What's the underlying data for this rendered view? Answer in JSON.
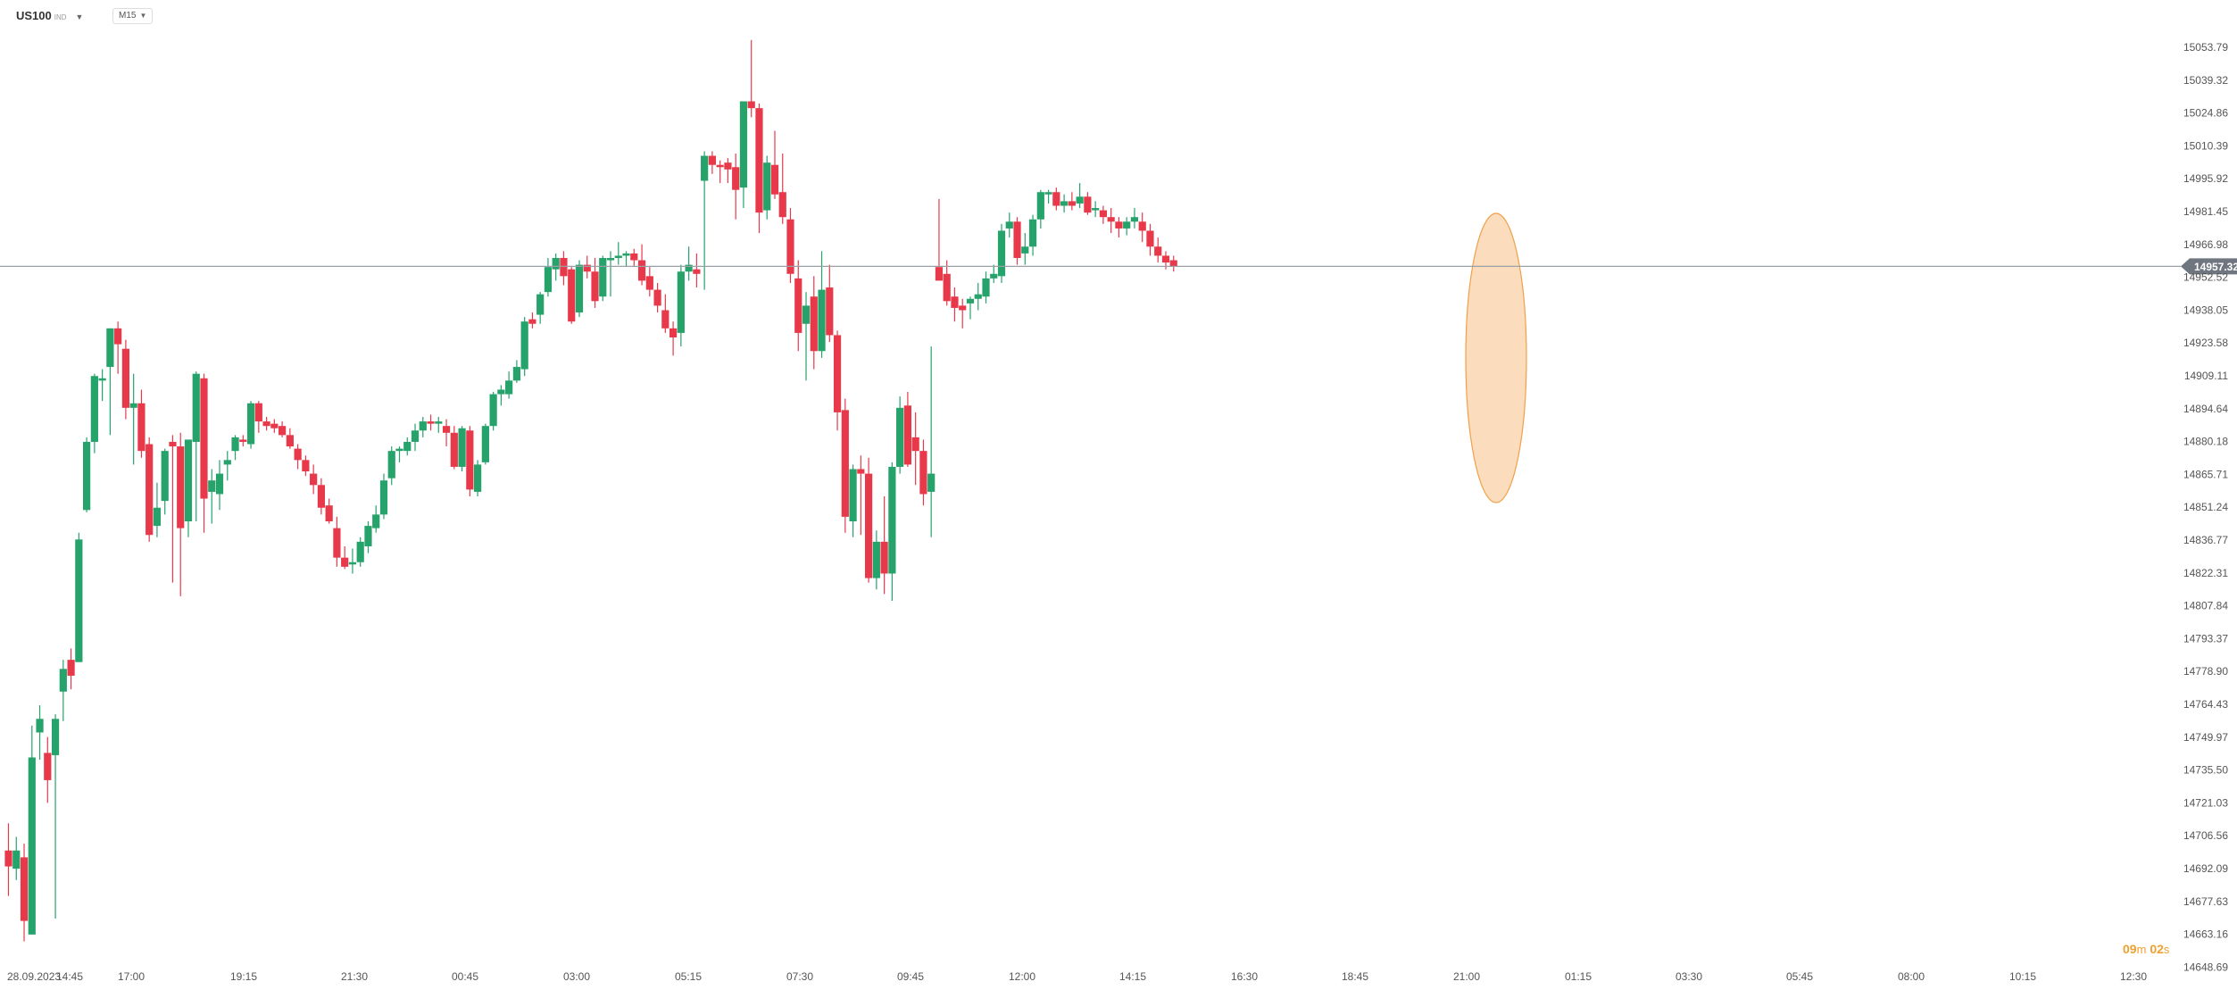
{
  "header": {
    "symbol": "US100",
    "symbol_tag": "IND",
    "timeframe": "M15"
  },
  "countdown": {
    "minutes": "09",
    "min_unit": "m",
    "seconds": "02",
    "sec_unit": "s"
  },
  "colors": {
    "bull": "#26a26b",
    "bear": "#e8394b",
    "current_line": "#9aa0a6",
    "current_label_bg": "#6f7680",
    "highlight": "#f6b26b"
  },
  "chart_data": {
    "type": "candlestick",
    "instrument": "US100",
    "interval": "M15",
    "y_ticks": [
      "15053.79",
      "15039.32",
      "15024.86",
      "15010.39",
      "14995.92",
      "14981.45",
      "14966.98",
      "14952.52",
      "14938.05",
      "14923.58",
      "14909.11",
      "14894.64",
      "14880.18",
      "14865.71",
      "14851.24",
      "14836.77",
      "14822.31",
      "14807.84",
      "14793.37",
      "14778.90",
      "14764.43",
      "14749.97",
      "14735.50",
      "14721.03",
      "14706.56",
      "14692.09",
      "14677.63",
      "14663.16",
      "14648.69"
    ],
    "x_ticks": [
      "28.09.2023",
      "14:45",
      "17:00",
      "19:15",
      "21:30",
      "00:45",
      "03:00",
      "05:15",
      "07:30",
      "09:45",
      "12:00",
      "14:15",
      "16:30",
      "18:45",
      "21:00",
      "01:15",
      "03:30",
      "05:45",
      "08:00",
      "10:15",
      "12:30"
    ],
    "ylim": [
      14648.69,
      15063
    ],
    "current_price": "14957.32",
    "annotations": [
      "ellipse highlighting the candles between 21:00 and 21:30"
    ],
    "candles": [
      {
        "o": 14700,
        "h": 14712,
        "l": 14680,
        "c": 14693
      },
      {
        "o": 14692,
        "h": 14706,
        "l": 14687,
        "c": 14700
      },
      {
        "o": 14697,
        "h": 14703,
        "l": 14660,
        "c": 14669
      },
      {
        "o": 14663,
        "h": 14755,
        "l": 14663,
        "c": 14741
      },
      {
        "o": 14752,
        "h": 14764,
        "l": 14740,
        "c": 14758
      },
      {
        "o": 14743,
        "h": 14750,
        "l": 14721,
        "c": 14731
      },
      {
        "o": 14742,
        "h": 14760,
        "l": 14670,
        "c": 14758
      },
      {
        "o": 14770,
        "h": 14784,
        "l": 14757,
        "c": 14780
      },
      {
        "o": 14784,
        "h": 14789,
        "l": 14771,
        "c": 14777
      },
      {
        "o": 14783,
        "h": 14840,
        "l": 14783,
        "c": 14837
      },
      {
        "o": 14850,
        "h": 14882,
        "l": 14849,
        "c": 14880
      },
      {
        "o": 14880,
        "h": 14910,
        "l": 14875,
        "c": 14909
      },
      {
        "o": 14907,
        "h": 14912,
        "l": 14898,
        "c": 14908
      },
      {
        "o": 14913,
        "h": 14930,
        "l": 14883,
        "c": 14930
      },
      {
        "o": 14930,
        "h": 14933,
        "l": 14910,
        "c": 14923
      },
      {
        "o": 14921,
        "h": 14925,
        "l": 14890,
        "c": 14895
      },
      {
        "o": 14895,
        "h": 14910,
        "l": 14870,
        "c": 14897
      },
      {
        "o": 14897,
        "h": 14903,
        "l": 14873,
        "c": 14876
      },
      {
        "o": 14879,
        "h": 14882,
        "l": 14836,
        "c": 14839
      },
      {
        "o": 14843,
        "h": 14862,
        "l": 14838,
        "c": 14851
      },
      {
        "o": 14854,
        "h": 14877,
        "l": 14848,
        "c": 14876
      },
      {
        "o": 14880,
        "h": 14883,
        "l": 14818,
        "c": 14878
      },
      {
        "o": 14878,
        "h": 14884,
        "l": 14812,
        "c": 14842
      },
      {
        "o": 14845,
        "h": 14880,
        "l": 14838,
        "c": 14881
      },
      {
        "o": 14880,
        "h": 14911,
        "l": 14845,
        "c": 14910
      },
      {
        "o": 14908,
        "h": 14910,
        "l": 14840,
        "c": 14855
      },
      {
        "o": 14858,
        "h": 14868,
        "l": 14844,
        "c": 14863
      },
      {
        "o": 14857,
        "h": 14872,
        "l": 14850,
        "c": 14866
      },
      {
        "o": 14870,
        "h": 14876,
        "l": 14863,
        "c": 14872
      },
      {
        "o": 14876,
        "h": 14883,
        "l": 14872,
        "c": 14882
      },
      {
        "o": 14881,
        "h": 14883,
        "l": 14878,
        "c": 14880
      },
      {
        "o": 14879,
        "h": 14898,
        "l": 14877,
        "c": 14897
      },
      {
        "o": 14897,
        "h": 14898,
        "l": 14884,
        "c": 14889
      },
      {
        "o": 14889,
        "h": 14891,
        "l": 14885,
        "c": 14887
      },
      {
        "o": 14888,
        "h": 14890,
        "l": 14884,
        "c": 14886
      },
      {
        "o": 14887,
        "h": 14889,
        "l": 14882,
        "c": 14883
      },
      {
        "o": 14883,
        "h": 14886,
        "l": 14877,
        "c": 14878
      },
      {
        "o": 14877,
        "h": 14879,
        "l": 14868,
        "c": 14872
      },
      {
        "o": 14872,
        "h": 14874,
        "l": 14865,
        "c": 14867
      },
      {
        "o": 14866,
        "h": 14870,
        "l": 14857,
        "c": 14861
      },
      {
        "o": 14861,
        "h": 14864,
        "l": 14848,
        "c": 14851
      },
      {
        "o": 14852,
        "h": 14855,
        "l": 14844,
        "c": 14845
      },
      {
        "o": 14842,
        "h": 14847,
        "l": 14825,
        "c": 14829
      },
      {
        "o": 14829,
        "h": 14834,
        "l": 14824,
        "c": 14825
      },
      {
        "o": 14826,
        "h": 14833,
        "l": 14822,
        "c": 14827
      },
      {
        "o": 14827,
        "h": 14838,
        "l": 14825,
        "c": 14836
      },
      {
        "o": 14834,
        "h": 14845,
        "l": 14831,
        "c": 14843
      },
      {
        "o": 14842,
        "h": 14852,
        "l": 14840,
        "c": 14848
      },
      {
        "o": 14848,
        "h": 14866,
        "l": 14846,
        "c": 14863
      },
      {
        "o": 14864,
        "h": 14878,
        "l": 14861,
        "c": 14876
      },
      {
        "o": 14876,
        "h": 14878,
        "l": 14871,
        "c": 14877
      },
      {
        "o": 14876,
        "h": 14882,
        "l": 14874,
        "c": 14880
      },
      {
        "o": 14880,
        "h": 14888,
        "l": 14876,
        "c": 14885
      },
      {
        "o": 14885,
        "h": 14891,
        "l": 14882,
        "c": 14889
      },
      {
        "o": 14889,
        "h": 14892,
        "l": 14885,
        "c": 14888
      },
      {
        "o": 14888,
        "h": 14891,
        "l": 14884,
        "c": 14889
      },
      {
        "o": 14887,
        "h": 14890,
        "l": 14878,
        "c": 14884
      },
      {
        "o": 14884,
        "h": 14887,
        "l": 14868,
        "c": 14869
      },
      {
        "o": 14869,
        "h": 14887,
        "l": 14867,
        "c": 14886
      },
      {
        "o": 14885,
        "h": 14887,
        "l": 14856,
        "c": 14859
      },
      {
        "o": 14858,
        "h": 14872,
        "l": 14856,
        "c": 14870
      },
      {
        "o": 14871,
        "h": 14888,
        "l": 14870,
        "c": 14887
      },
      {
        "o": 14887,
        "h": 14902,
        "l": 14885,
        "c": 14901
      },
      {
        "o": 14901,
        "h": 14905,
        "l": 14896,
        "c": 14903
      },
      {
        "o": 14901,
        "h": 14911,
        "l": 14899,
        "c": 14907
      },
      {
        "o": 14907,
        "h": 14916,
        "l": 14906,
        "c": 14913
      },
      {
        "o": 14912,
        "h": 14935,
        "l": 14909,
        "c": 14933
      },
      {
        "o": 14934,
        "h": 14937,
        "l": 14930,
        "c": 14932
      },
      {
        "o": 14936,
        "h": 14946,
        "l": 14932,
        "c": 14945
      },
      {
        "o": 14946,
        "h": 14961,
        "l": 14944,
        "c": 14957
      },
      {
        "o": 14956,
        "h": 14963,
        "l": 14951,
        "c": 14961
      },
      {
        "o": 14961,
        "h": 14964,
        "l": 14949,
        "c": 14953
      },
      {
        "o": 14956,
        "h": 14957,
        "l": 14932,
        "c": 14933
      },
      {
        "o": 14937,
        "h": 14960,
        "l": 14935,
        "c": 14958
      },
      {
        "o": 14958,
        "h": 14962,
        "l": 14952,
        "c": 14955
      },
      {
        "o": 14955,
        "h": 14961,
        "l": 14939,
        "c": 14942
      },
      {
        "o": 14944,
        "h": 14962,
        "l": 14942,
        "c": 14961
      },
      {
        "o": 14960,
        "h": 14964,
        "l": 14944,
        "c": 14961
      },
      {
        "o": 14961,
        "h": 14968,
        "l": 14958,
        "c": 14962
      },
      {
        "o": 14962,
        "h": 14964,
        "l": 14957,
        "c": 14963
      },
      {
        "o": 14963,
        "h": 14965,
        "l": 14957,
        "c": 14960
      },
      {
        "o": 14960,
        "h": 14967,
        "l": 14949,
        "c": 14951
      },
      {
        "o": 14953,
        "h": 14957,
        "l": 14944,
        "c": 14947
      },
      {
        "o": 14947,
        "h": 14950,
        "l": 14937,
        "c": 14940
      },
      {
        "o": 14938,
        "h": 14945,
        "l": 14928,
        "c": 14930
      },
      {
        "o": 14930,
        "h": 14933,
        "l": 14918,
        "c": 14926
      },
      {
        "o": 14928,
        "h": 14958,
        "l": 14922,
        "c": 14955
      },
      {
        "o": 14955,
        "h": 14966,
        "l": 14951,
        "c": 14958
      },
      {
        "o": 14956,
        "h": 14963,
        "l": 14948,
        "c": 14954
      },
      {
        "o": 14995,
        "h": 15008,
        "l": 14947,
        "c": 15006
      },
      {
        "o": 15006,
        "h": 15008,
        "l": 14998,
        "c": 15002
      },
      {
        "o": 15002,
        "h": 15004,
        "l": 14994,
        "c": 15001
      },
      {
        "o": 15003,
        "h": 15005,
        "l": 14994,
        "c": 15000
      },
      {
        "o": 15001,
        "h": 15007,
        "l": 14978,
        "c": 14991
      },
      {
        "o": 14992,
        "h": 15030,
        "l": 14983,
        "c": 15030
      },
      {
        "o": 15030,
        "h": 15057,
        "l": 15023,
        "c": 15027
      },
      {
        "o": 15027,
        "h": 15029,
        "l": 14972,
        "c": 14981
      },
      {
        "o": 14982,
        "h": 15006,
        "l": 14978,
        "c": 15003
      },
      {
        "o": 15002,
        "h": 15017,
        "l": 14987,
        "c": 14989
      },
      {
        "o": 14990,
        "h": 15007,
        "l": 14976,
        "c": 14979
      },
      {
        "o": 14978,
        "h": 14983,
        "l": 14950,
        "c": 14954
      },
      {
        "o": 14952,
        "h": 14960,
        "l": 14920,
        "c": 14928
      },
      {
        "o": 14932,
        "h": 14946,
        "l": 14907,
        "c": 14940
      },
      {
        "o": 14944,
        "h": 14953,
        "l": 14912,
        "c": 14920
      },
      {
        "o": 14920,
        "h": 14964,
        "l": 14917,
        "c": 14947
      },
      {
        "o": 14948,
        "h": 14958,
        "l": 14924,
        "c": 14927
      },
      {
        "o": 14927,
        "h": 14929,
        "l": 14885,
        "c": 14893
      },
      {
        "o": 14894,
        "h": 14899,
        "l": 14840,
        "c": 14847
      },
      {
        "o": 14845,
        "h": 14870,
        "l": 14838,
        "c": 14868
      },
      {
        "o": 14868,
        "h": 14874,
        "l": 14839,
        "c": 14866
      },
      {
        "o": 14866,
        "h": 14873,
        "l": 14818,
        "c": 14820
      },
      {
        "o": 14820,
        "h": 14841,
        "l": 14815,
        "c": 14836
      },
      {
        "o": 14836,
        "h": 14856,
        "l": 14813,
        "c": 14822
      },
      {
        "o": 14822,
        "h": 14871,
        "l": 14810,
        "c": 14869
      },
      {
        "o": 14869,
        "h": 14900,
        "l": 14866,
        "c": 14895
      },
      {
        "o": 14896,
        "h": 14902,
        "l": 14869,
        "c": 14870
      },
      {
        "o": 14882,
        "h": 14893,
        "l": 14861,
        "c": 14876
      },
      {
        "o": 14876,
        "h": 14881,
        "l": 14852,
        "c": 14857
      },
      {
        "o": 14858,
        "h": 14922,
        "l": 14838,
        "c": 14866
      },
      {
        "o": 14957,
        "h": 14987,
        "l": 14952,
        "c": 14951
      },
      {
        "o": 14954,
        "h": 14960,
        "l": 14940,
        "c": 14942
      },
      {
        "o": 14944,
        "h": 14948,
        "l": 14933,
        "c": 14939
      },
      {
        "o": 14940,
        "h": 14943,
        "l": 14930,
        "c": 14938
      },
      {
        "o": 14941,
        "h": 14944,
        "l": 14934,
        "c": 14943
      },
      {
        "o": 14943,
        "h": 14950,
        "l": 14938,
        "c": 14945
      },
      {
        "o": 14944,
        "h": 14955,
        "l": 14941,
        "c": 14952
      },
      {
        "o": 14952,
        "h": 14958,
        "l": 14950,
        "c": 14954
      },
      {
        "o": 14953,
        "h": 14976,
        "l": 14950,
        "c": 14973
      },
      {
        "o": 14974,
        "h": 14981,
        "l": 14970,
        "c": 14977
      },
      {
        "o": 14977,
        "h": 14979,
        "l": 14958,
        "c": 14961
      },
      {
        "o": 14963,
        "h": 14972,
        "l": 14958,
        "c": 14966
      },
      {
        "o": 14966,
        "h": 14980,
        "l": 14962,
        "c": 14978
      },
      {
        "o": 14978,
        "h": 14991,
        "l": 14974,
        "c": 14990
      },
      {
        "o": 14989,
        "h": 14991,
        "l": 14985,
        "c": 14990
      },
      {
        "o": 14990,
        "h": 14992,
        "l": 14982,
        "c": 14984
      },
      {
        "o": 14984,
        "h": 14989,
        "l": 14981,
        "c": 14986
      },
      {
        "o": 14986,
        "h": 14990,
        "l": 14982,
        "c": 14984
      },
      {
        "o": 14985,
        "h": 14994,
        "l": 14983,
        "c": 14988
      },
      {
        "o": 14988,
        "h": 14990,
        "l": 14980,
        "c": 14981
      },
      {
        "o": 14982,
        "h": 14986,
        "l": 14979,
        "c": 14983
      },
      {
        "o": 14982,
        "h": 14984,
        "l": 14976,
        "c": 14979
      },
      {
        "o": 14979,
        "h": 14983,
        "l": 14972,
        "c": 14977
      },
      {
        "o": 14977,
        "h": 14979,
        "l": 14970,
        "c": 14974
      },
      {
        "o": 14974,
        "h": 14979,
        "l": 14971,
        "c": 14977
      },
      {
        "o": 14977,
        "h": 14983,
        "l": 14974,
        "c": 14979
      },
      {
        "o": 14977,
        "h": 14981,
        "l": 14968,
        "c": 14973
      },
      {
        "o": 14973,
        "h": 14976,
        "l": 14962,
        "c": 14966
      },
      {
        "o": 14966,
        "h": 14970,
        "l": 14959,
        "c": 14962
      },
      {
        "o": 14962,
        "h": 14964,
        "l": 14956,
        "c": 14959
      },
      {
        "o": 14960,
        "h": 14962,
        "l": 14955,
        "c": 14957.32
      }
    ]
  }
}
